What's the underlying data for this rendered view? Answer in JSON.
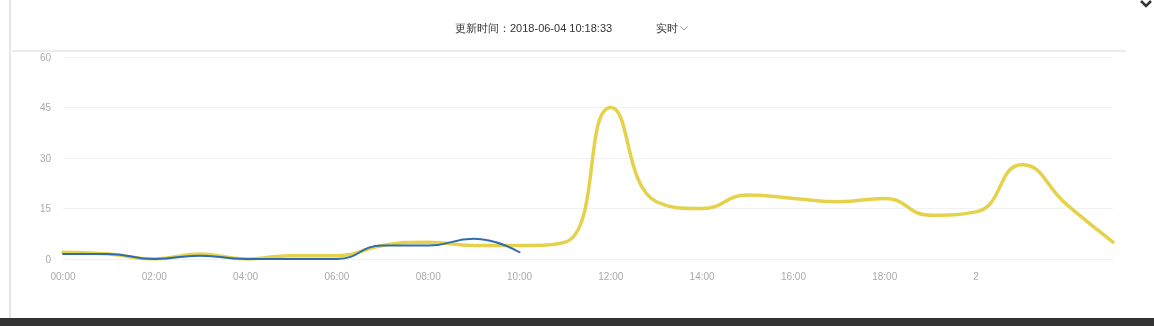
{
  "chart_data": {
    "type": "line",
    "title": "更新时间：2018-06-04 10:18:33",
    "annotations": [
      "实时"
    ],
    "categories": [
      "00:00",
      null,
      "02:00",
      null,
      "04:00",
      null,
      "06:00",
      null,
      "08:00",
      null,
      "10:00",
      null,
      "12:00",
      null,
      "14:00",
      null,
      "16:00",
      null,
      "18:00",
      null,
      "2",
      null,
      null,
      null
    ],
    "ylim": [
      0,
      60
    ],
    "yticks": [
      0,
      15,
      30,
      45,
      60
    ],
    "grid": "y",
    "marker": "none",
    "line_style": "solid",
    "series": [
      {
        "color": "#e6d24a",
        "values": [
          2,
          1.5,
          0,
          1.5,
          0,
          1,
          1,
          4,
          5,
          4,
          4,
          5,
          45,
          17,
          15,
          19,
          18,
          17,
          18,
          13,
          14,
          28,
          16,
          5
        ]
      },
      {
        "color": "#2f6db0",
        "values": [
          1.5,
          1.5,
          0,
          1,
          0,
          0,
          0,
          4,
          4,
          6,
          2,
          null,
          null,
          null,
          null,
          null,
          null,
          null,
          null,
          null,
          null,
          null,
          null,
          null
        ]
      }
    ]
  }
}
